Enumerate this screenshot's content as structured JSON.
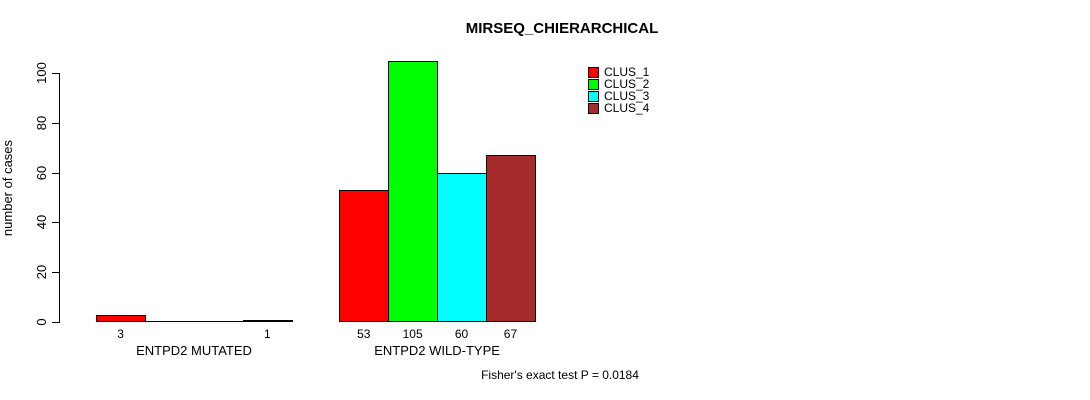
{
  "chart_data": {
    "type": "bar",
    "title": "MIRSEQ_CHIERARCHICAL",
    "ylabel": "number of cases",
    "xlabel": "",
    "axis_range": [
      0,
      100
    ],
    "yticks": [
      0,
      20,
      40,
      60,
      80,
      100
    ],
    "categories": [
      "ENTPD2 MUTATED",
      "ENTPD2 WILD-TYPE"
    ],
    "series": [
      {
        "name": "CLUS_1",
        "color": "#ff0000",
        "values": [
          3,
          53
        ]
      },
      {
        "name": "CLUS_2",
        "color": "#00ff00",
        "values": [
          0,
          105
        ]
      },
      {
        "name": "CLUS_3",
        "color": "#00ffff",
        "values": [
          0,
          60
        ]
      },
      {
        "name": "CLUS_4",
        "color": "#a52a2a",
        "values": [
          1,
          67
        ]
      }
    ],
    "bar_labels": [
      [
        "3",
        "",
        "",
        "1"
      ],
      [
        "53",
        "105",
        "60",
        "67"
      ]
    ],
    "legend_position": "top-right",
    "grid": false,
    "annotation": "Fisher's exact test P = 0.0184"
  }
}
